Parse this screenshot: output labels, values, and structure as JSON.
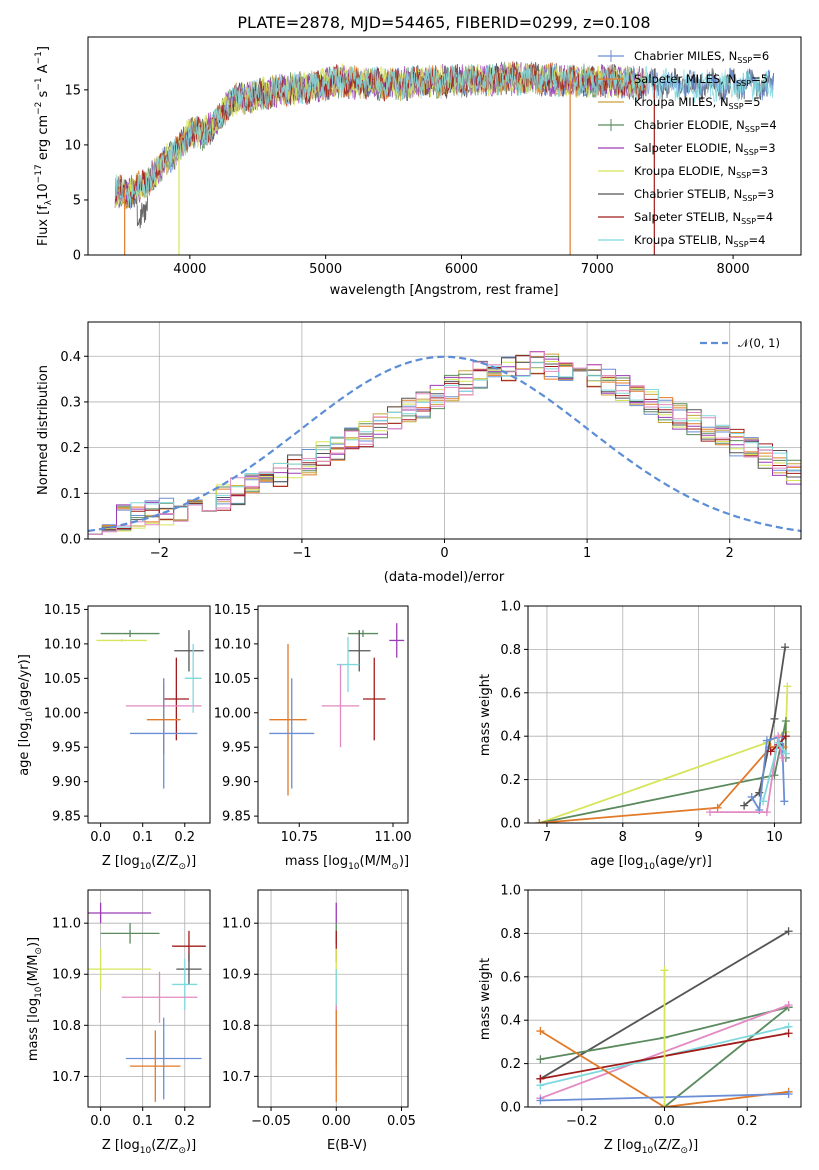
{
  "chart_data": [
    {
      "id": "spectrum",
      "type": "line",
      "title": "PLATE=2878, MJD=54465, FIBERID=0299, z=0.108",
      "xlabel": "wavelength [Angstrom, rest frame]",
      "ylabel": "Flux [f",
      "ylabel_sub": "λ",
      "ylabel_rest": "10",
      "ylabel_exp": "−17",
      "ylabel_units": " erg cm",
      "ylabel_exp2": "−2",
      "ylabel_s": " s",
      "ylabel_exp3": "−1",
      "ylabel_A": " A",
      "ylabel_exp4": "−1",
      "ylabel_end": "]",
      "xlim": [
        3250,
        8500
      ],
      "ylim": [
        0,
        19.8
      ],
      "xticks": [
        4000,
        5000,
        6000,
        7000,
        8000
      ],
      "yticks": [
        0,
        5,
        10,
        15
      ],
      "grid": false,
      "legend_position": "right",
      "continuum": {
        "x": [
          3450,
          3550,
          3650,
          3750,
          3850,
          3920,
          4000,
          4100,
          4200,
          4300,
          4400,
          4500,
          4700,
          4900,
          5100,
          5300,
          5500,
          5700,
          5900,
          6100,
          6300,
          6500,
          6700,
          6900,
          7100,
          7300,
          7500,
          7700,
          7900,
          8100,
          8300
        ],
        "y": [
          5.8,
          5.6,
          6.3,
          7.5,
          9.0,
          9.5,
          11.2,
          11.0,
          12.1,
          14.0,
          14.2,
          14.5,
          15.0,
          15.2,
          15.8,
          15.6,
          15.5,
          15.7,
          15.8,
          15.9,
          16.0,
          16.0,
          15.9,
          15.8,
          15.8,
          15.6,
          15.5,
          15.4,
          15.4,
          15.5,
          15.3
        ]
      },
      "series": [
        {
          "name": "Chabrier MILES, N",
          "sub": "SSP",
          "n": "=6",
          "color": "#6a8fd6",
          "marker": "plus"
        },
        {
          "name": "Salpeter MILES, N",
          "sub": "SSP",
          "n": "=5",
          "color": "#e27a28",
          "marker": "none"
        },
        {
          "name": "Kroupa MILES, N",
          "sub": "SSP",
          "n": "=5",
          "color": "#c8a23a",
          "marker": "none"
        },
        {
          "name": "Chabrier ELODIE, N",
          "sub": "SSP",
          "n": "=4",
          "color": "#5a8a5e",
          "marker": "plus"
        },
        {
          "name": "Salpeter ELODIE, N",
          "sub": "SSP",
          "n": "=3",
          "color": "#9b3bb5",
          "marker": "none"
        },
        {
          "name": "Kroupa ELODIE, N",
          "sub": "SSP",
          "n": "=3",
          "color": "#d7e55a",
          "marker": "none"
        },
        {
          "name": "Chabrier STELIB, N",
          "sub": "SSP",
          "n": "=3",
          "color": "#555555",
          "marker": "none"
        },
        {
          "name": "Salpeter STELIB, N",
          "sub": "SSP",
          "n": "=4",
          "color": "#a01c1c",
          "marker": "none"
        },
        {
          "name": "Kroupa STELIB, N",
          "sub": "SSP",
          "n": "=4",
          "color": "#7fd8de",
          "marker": "none"
        }
      ]
    },
    {
      "id": "residuals",
      "type": "bar",
      "xlabel": "(data-model)/error",
      "ylabel": "Normed distribution",
      "xlim": [
        -2.5,
        2.5
      ],
      "ylim": [
        0,
        0.475
      ],
      "xticks": [
        -2,
        -1,
        0,
        1,
        2
      ],
      "yticks": [
        0.0,
        0.1,
        0.2,
        0.3,
        0.4
      ],
      "grid": true,
      "legend_position": "top-right",
      "legend_label": "𝒩(0, 1)",
      "normal_color": "#5b8ed6",
      "bin_edges_start": -2.5,
      "bin_width": 0.1,
      "base_profile": [
        0.035,
        0.04,
        0.045,
        0.05,
        0.055,
        0.06,
        0.065,
        0.07,
        0.08,
        0.09,
        0.105,
        0.115,
        0.125,
        0.14,
        0.155,
        0.17,
        0.185,
        0.2,
        0.215,
        0.23,
        0.245,
        0.26,
        0.28,
        0.295,
        0.31,
        0.33,
        0.345,
        0.36,
        0.37,
        0.375,
        0.38,
        0.385,
        0.38,
        0.375,
        0.37,
        0.36,
        0.345,
        0.33,
        0.315,
        0.3,
        0.285,
        0.27,
        0.255,
        0.24,
        0.225,
        0.21,
        0.195,
        0.18,
        0.165,
        0.15
      ],
      "hist_series": [
        {
          "color": "#6a8fd6"
        },
        {
          "color": "#e27a28"
        },
        {
          "color": "#c8a23a"
        },
        {
          "color": "#5a8a5e"
        },
        {
          "color": "#9b3bb5"
        },
        {
          "color": "#d7e55a"
        },
        {
          "color": "#555555"
        },
        {
          "color": "#a01c1c"
        },
        {
          "color": "#7fd8de"
        },
        {
          "color": "#e28ac2"
        }
      ]
    },
    {
      "id": "age-vs-z",
      "type": "scatter",
      "xlabel": "Z [log",
      "xlabel_sub": "10",
      "xlabel_rest": "(Z/Z",
      "xlabel_sub2": "⊙",
      "xlabel_end": ")]",
      "ylabel": "age  [log",
      "ylabel_sub": "10",
      "ylabel_rest": "(age/yr)]",
      "xlim": [
        -0.03,
        0.26
      ],
      "ylim": [
        9.84,
        10.155
      ],
      "xticks": [
        0.0,
        0.1,
        0.2
      ],
      "yticks": [
        9.85,
        9.9,
        9.95,
        10.0,
        10.05,
        10.1,
        10.15
      ],
      "grid": false,
      "points": [
        {
          "x": 0.07,
          "y": 10.115,
          "xerr": 0.07,
          "yerr": 0.005,
          "color": "#5a8a5e"
        },
        {
          "x": 0.05,
          "y": 10.105,
          "xerr": 0.06,
          "yerr": 0.002,
          "color": "#d7e55a"
        },
        {
          "x": 0.21,
          "y": 10.09,
          "xerr": 0.035,
          "yerr": 0.03,
          "color": "#555555"
        },
        {
          "x": 0.18,
          "y": 10.02,
          "xerr": 0.03,
          "yerr": 0.06,
          "color": "#a01c1c"
        },
        {
          "x": 0.15,
          "y": 10.01,
          "xerr": 0.09,
          "yerr": 0.04,
          "color": "#e28ac2"
        },
        {
          "x": 0.15,
          "y": 9.99,
          "xerr": 0.04,
          "yerr": 0.05,
          "color": "#e27a28"
        },
        {
          "x": 0.15,
          "y": 9.97,
          "xerr": 0.08,
          "yerr": 0.08,
          "color": "#6a8fd6"
        },
        {
          "x": 0.22,
          "y": 10.05,
          "xerr": 0.02,
          "yerr": 0.05,
          "color": "#7fd8de"
        }
      ]
    },
    {
      "id": "age-vs-mass",
      "type": "scatter",
      "xlabel": "mass [log",
      "xlabel_sub": "10",
      "xlabel_rest": "(M/M",
      "xlabel_sub2": "⊙",
      "xlabel_end": ")]",
      "xlim": [
        10.64,
        11.04
      ],
      "ylim": [
        9.84,
        10.155
      ],
      "xticks": [
        10.75,
        11.0
      ],
      "yticks": [
        9.85,
        9.9,
        9.95,
        10.0,
        10.05,
        10.1,
        10.15
      ],
      "grid": false,
      "points": [
        {
          "x": 10.92,
          "y": 10.115,
          "xerr": 0.04,
          "yerr": 0.005,
          "color": "#5a8a5e"
        },
        {
          "x": 11.01,
          "y": 10.105,
          "xerr": 0.02,
          "yerr": 0.025,
          "color": "#9b3bb5"
        },
        {
          "x": 10.91,
          "y": 10.09,
          "xerr": 0.03,
          "yerr": 0.03,
          "color": "#555555"
        },
        {
          "x": 10.88,
          "y": 10.07,
          "xerr": 0.03,
          "yerr": 0.04,
          "color": "#7fd8de"
        },
        {
          "x": 10.95,
          "y": 10.02,
          "xerr": 0.03,
          "yerr": 0.06,
          "color": "#a01c1c"
        },
        {
          "x": 10.86,
          "y": 10.01,
          "xerr": 0.05,
          "yerr": 0.06,
          "color": "#e28ac2"
        },
        {
          "x": 10.72,
          "y": 9.99,
          "xerr": 0.05,
          "yerr": 0.11,
          "color": "#e27a28"
        },
        {
          "x": 10.73,
          "y": 9.97,
          "xerr": 0.06,
          "yerr": 0.08,
          "color": "#6a8fd6"
        }
      ]
    },
    {
      "id": "weights-vs-age",
      "type": "line",
      "xlabel": "age  [log",
      "xlabel_sub": "10",
      "xlabel_rest": "(age/yr)]",
      "ylabel": "mass weight",
      "xlim": [
        6.75,
        10.35
      ],
      "ylim": [
        0,
        1.0
      ],
      "xticks": [
        7,
        8,
        9,
        10
      ],
      "yticks": [
        0.0,
        0.2,
        0.4,
        0.6,
        0.8,
        1.0
      ],
      "grid": true,
      "series": [
        {
          "color": "#d7e55a",
          "x": [
            6.9,
            9.9,
            10.15,
            10.17
          ],
          "y": [
            0.0,
            0.37,
            0.42,
            0.63
          ]
        },
        {
          "color": "#5a8a5e",
          "x": [
            6.9,
            10.0,
            10.15,
            10.15
          ],
          "y": [
            0.0,
            0.22,
            0.47,
            0.3
          ]
        },
        {
          "color": "#e27a28",
          "x": [
            6.9,
            9.25,
            9.95,
            10.12
          ],
          "y": [
            0.0,
            0.07,
            0.35,
            0.35
          ]
        },
        {
          "color": "#555555",
          "x": [
            9.6,
            9.8,
            10.0,
            10.14
          ],
          "y": [
            0.08,
            0.14,
            0.48,
            0.81
          ]
        },
        {
          "color": "#6a8fd6",
          "x": [
            9.7,
            9.8,
            9.9,
            10.1,
            10.13
          ],
          "y": [
            0.12,
            0.06,
            0.38,
            0.4,
            0.1
          ]
        },
        {
          "color": "#e28ac2",
          "x": [
            9.15,
            9.9,
            10.05,
            10.1
          ],
          "y": [
            0.05,
            0.05,
            0.4,
            0.3
          ]
        },
        {
          "color": "#a01c1c",
          "x": [
            9.95,
            10.05,
            10.15
          ],
          "y": [
            0.33,
            0.36,
            0.4
          ]
        },
        {
          "color": "#7fd8de",
          "x": [
            9.85,
            10.05,
            10.15
          ],
          "y": [
            0.1,
            0.37,
            0.32
          ]
        }
      ]
    },
    {
      "id": "mass-vs-z",
      "type": "scatter",
      "xlabel": "Z [log",
      "xlabel_sub": "10",
      "xlabel_rest": "(Z/Z",
      "xlabel_sub2": "⊙",
      "xlabel_end": ")]",
      "ylabel": "mass [log",
      "ylabel_sub": "10",
      "ylabel_rest": "(M/M",
      "ylabel_sub2": "⊙",
      "ylabel_end": ")]",
      "xlim": [
        -0.03,
        0.26
      ],
      "ylim": [
        10.64,
        11.065
      ],
      "xticks": [
        0.0,
        0.1,
        0.2
      ],
      "yticks": [
        10.7,
        10.8,
        10.9,
        11.0
      ],
      "grid": true,
      "points": [
        {
          "x": 0.0,
          "y": 11.02,
          "xerr": 0.12,
          "yerr": 0.02,
          "color": "#9b3bb5"
        },
        {
          "x": 0.07,
          "y": 10.98,
          "xerr": 0.07,
          "yerr": 0.02,
          "color": "#5a8a5e"
        },
        {
          "x": 0.21,
          "y": 10.955,
          "xerr": 0.04,
          "yerr": 0.03,
          "color": "#a01c1c"
        },
        {
          "x": 0.0,
          "y": 10.91,
          "xerr": 0.12,
          "yerr": 0.04,
          "color": "#d7e55a"
        },
        {
          "x": 0.21,
          "y": 10.91,
          "xerr": 0.03,
          "yerr": 0.03,
          "color": "#555555"
        },
        {
          "x": 0.2,
          "y": 10.88,
          "xerr": 0.03,
          "yerr": 0.05,
          "color": "#7fd8de"
        },
        {
          "x": 0.14,
          "y": 10.855,
          "xerr": 0.09,
          "yerr": 0.05,
          "color": "#e28ac2"
        },
        {
          "x": 0.15,
          "y": 10.735,
          "xerr": 0.09,
          "yerr": 0.08,
          "color": "#6a8fd6"
        },
        {
          "x": 0.13,
          "y": 10.72,
          "xerr": 0.06,
          "yerr": 0.07,
          "color": "#e27a28"
        }
      ]
    },
    {
      "id": "mass-vs-ebv",
      "type": "scatter",
      "xlabel": "E(B-V)",
      "xlim": [
        -0.06,
        0.055
      ],
      "ylim": [
        10.64,
        11.065
      ],
      "xticks": [
        -0.05,
        0.0,
        0.05
      ],
      "yticks": [
        10.7,
        10.8,
        10.9,
        11.0
      ],
      "grid": true,
      "points": [
        {
          "x": 0.0,
          "y": 11.02,
          "yerr": 0.02,
          "color": "#9b3bb5"
        },
        {
          "x": 0.0,
          "y": 10.98,
          "yerr": 0.02,
          "color": "#5a8a5e"
        },
        {
          "x": 0.0,
          "y": 10.955,
          "yerr": 0.03,
          "color": "#a01c1c"
        },
        {
          "x": 0.0,
          "y": 10.9,
          "yerr": 0.05,
          "color": "#d7e55a"
        },
        {
          "x": 0.0,
          "y": 10.86,
          "yerr": 0.05,
          "color": "#7fd8de"
        },
        {
          "x": 0.0,
          "y": 10.78,
          "yerr": 0.06,
          "color": "#e28ac2"
        },
        {
          "x": 0.0,
          "y": 10.74,
          "yerr": 0.09,
          "color": "#e27a28"
        }
      ]
    },
    {
      "id": "weights-vs-z",
      "type": "line",
      "xlabel": "Z [log",
      "xlabel_sub": "10",
      "xlabel_rest": "(Z/Z",
      "xlabel_sub2": "⊙",
      "xlabel_end": ")]",
      "ylabel": "mass weight",
      "xlim": [
        -0.33,
        0.33
      ],
      "ylim": [
        0,
        1.0
      ],
      "xticks": [
        -0.2,
        0.0,
        0.2
      ],
      "yticks": [
        0.0,
        0.2,
        0.4,
        0.6,
        0.8,
        1.0
      ],
      "grid": true,
      "series": [
        {
          "color": "#555555",
          "x": [
            -0.3,
            0.3
          ],
          "y": [
            0.13,
            0.81
          ]
        },
        {
          "color": "#5a8a5e",
          "x": [
            -0.3,
            0.0,
            0.3
          ],
          "y": [
            0.22,
            0.32,
            0.46
          ]
        },
        {
          "color": "#5a8a5e",
          "x": [
            0.0,
            0.3
          ],
          "y": [
            0.0,
            0.46
          ]
        },
        {
          "color": "#e28ac2",
          "x": [
            -0.3,
            0.3
          ],
          "y": [
            0.04,
            0.47
          ]
        },
        {
          "color": "#7fd8de",
          "x": [
            -0.3,
            0.3
          ],
          "y": [
            0.1,
            0.37
          ]
        },
        {
          "color": "#a01c1c",
          "x": [
            -0.3,
            0.3
          ],
          "y": [
            0.13,
            0.34
          ]
        },
        {
          "color": "#e27a28",
          "x": [
            -0.3,
            0.0,
            0.3
          ],
          "y": [
            0.35,
            0.0,
            0.07
          ]
        },
        {
          "color": "#6a8fd6",
          "x": [
            -0.3,
            0.3
          ],
          "y": [
            0.03,
            0.06
          ]
        },
        {
          "color": "#d7e55a",
          "x": [
            0.0,
            0.0
          ],
          "y": [
            0.0,
            0.63
          ]
        }
      ]
    }
  ]
}
